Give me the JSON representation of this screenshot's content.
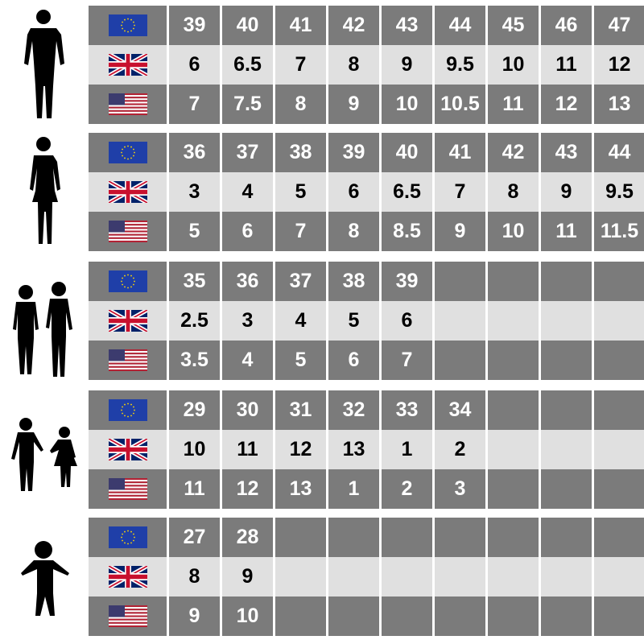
{
  "colors": {
    "dark_row": "#7b7b7b",
    "light_row": "#e0e0e0",
    "eu_blue": "#1f3fa8",
    "eu_star": "#ffd700"
  },
  "flags": [
    "eu-flag-icon",
    "uk-flag-icon",
    "us-flag-icon"
  ],
  "groups": [
    {
      "figure": "man-silhouette-icon",
      "eu": [
        "39",
        "40",
        "41",
        "42",
        "43",
        "44",
        "45",
        "46",
        "47"
      ],
      "uk": [
        "6",
        "6.5",
        "7",
        "8",
        "9",
        "9.5",
        "10",
        "11",
        "12"
      ],
      "us": [
        "7",
        "7.5",
        "8",
        "9",
        "10",
        "10.5",
        "11",
        "12",
        "13"
      ]
    },
    {
      "figure": "woman-silhouette-icon",
      "eu": [
        "36",
        "37",
        "38",
        "39",
        "40",
        "41",
        "42",
        "43",
        "44"
      ],
      "uk": [
        "3",
        "4",
        "5",
        "6",
        "6.5",
        "7",
        "8",
        "9",
        "9.5"
      ],
      "us": [
        "5",
        "6",
        "7",
        "8",
        "8.5",
        "9",
        "10",
        "11",
        "11.5"
      ]
    },
    {
      "figure": "teen-children-silhouette-icon",
      "eu": [
        "35",
        "36",
        "37",
        "38",
        "39",
        "",
        "",
        "",
        ""
      ],
      "uk": [
        "2.5",
        "3",
        "4",
        "5",
        "6",
        "",
        "",
        "",
        ""
      ],
      "us": [
        "3.5",
        "4",
        "5",
        "6",
        "7",
        "",
        "",
        "",
        ""
      ]
    },
    {
      "figure": "kids-holding-hands-silhouette-icon",
      "eu": [
        "29",
        "30",
        "31",
        "32",
        "33",
        "34",
        "",
        "",
        ""
      ],
      "uk": [
        "10",
        "11",
        "12",
        "13",
        "1",
        "2",
        "",
        "",
        ""
      ],
      "us": [
        "11",
        "12",
        "13",
        "1",
        "2",
        "3",
        "",
        "",
        ""
      ]
    },
    {
      "figure": "toddler-silhouette-icon",
      "eu": [
        "27",
        "28",
        "",
        "",
        "",
        "",
        "",
        "",
        ""
      ],
      "uk": [
        "8",
        "9",
        "",
        "",
        "",
        "",
        "",
        "",
        ""
      ],
      "us": [
        "9",
        "10",
        "",
        "",
        "",
        "",
        "",
        "",
        ""
      ]
    }
  ]
}
